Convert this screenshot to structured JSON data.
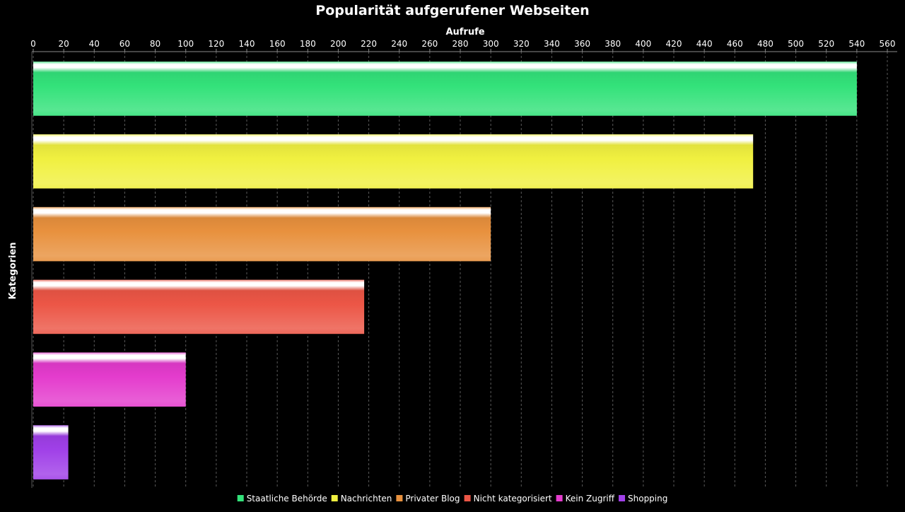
{
  "chart_data": {
    "type": "bar",
    "orientation": "horizontal",
    "title": "Popularität aufgerufener Webseiten",
    "xlabel": "Aufrufe",
    "ylabel": "Kategorien",
    "xlim": [
      0,
      560
    ],
    "x_ticks": [
      0,
      20,
      40,
      60,
      80,
      100,
      120,
      140,
      160,
      180,
      200,
      220,
      240,
      260,
      280,
      300,
      320,
      340,
      360,
      380,
      400,
      420,
      440,
      460,
      480,
      500,
      520,
      540,
      560
    ],
    "x_axis_position": "top",
    "grid": "vertical dashed",
    "legend_position": "bottom",
    "category_labels_shown": false,
    "series": [
      {
        "name": "Staatliche Behörde",
        "value": 540,
        "color": "#33e27a"
      },
      {
        "name": "Nachrichten",
        "value": 472,
        "color": "#f0f040"
      },
      {
        "name": "Privater Blog",
        "value": 300,
        "color": "#e8913e"
      },
      {
        "name": "Nicht kategorisiert",
        "value": 217,
        "color": "#ec5646"
      },
      {
        "name": "Kein Zugriff",
        "value": 100,
        "color": "#e43ccd"
      },
      {
        "name": "Shopping",
        "value": 23,
        "color": "#a040e8"
      }
    ]
  }
}
